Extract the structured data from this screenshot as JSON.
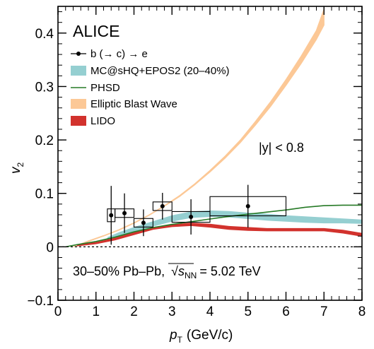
{
  "chart_data": {
    "type": "scatter",
    "experiment": "ALICE",
    "selection_text": "|y| < 0.8",
    "collision_text": "30–50% Pb–Pb, √sNN = 5.02 TeV",
    "collision_parts": {
      "main": "30–50% Pb–Pb,",
      "sqrt_label": "s",
      "sub": "NN",
      "value": "= 5.02 TeV"
    },
    "xlabel": {
      "main": "p",
      "sub": "T",
      "unit": "(GeV/c)"
    },
    "ylabel": {
      "main": "v",
      "sub": "2"
    },
    "xlim": [
      0,
      8
    ],
    "ylim": [
      -0.1,
      0.45
    ],
    "xticks": [
      0,
      1,
      2,
      3,
      4,
      5,
      6,
      7,
      8
    ],
    "xtick_labels": [
      "0",
      "1",
      "2",
      "3",
      "4",
      "5",
      "6",
      "7",
      "8"
    ],
    "yticks": [
      -0.1,
      0,
      0.1,
      0.2,
      0.3,
      0.4
    ],
    "ytick_labels": [
      "−0.1",
      "0",
      "0.1",
      "0.2",
      "0.3",
      "0.4"
    ],
    "legend_position": "top-left",
    "legend": [
      {
        "label": "b (→ c) → e",
        "style": "marker"
      },
      {
        "label": "MC@sHQ+EPOS2 (20–40%)",
        "style": "band",
        "color": "#95cfd1"
      },
      {
        "label": "PHSD",
        "style": "line",
        "color": "#267a26"
      },
      {
        "label": "Elliptic Blast Wave",
        "style": "band",
        "color": "#fcc896"
      },
      {
        "label": "LIDO",
        "style": "band",
        "color": "#d2322d"
      }
    ],
    "data": {
      "name": "b (→ c) → e",
      "points": [
        {
          "x": 1.4,
          "y": 0.059,
          "stat_err": 0.055,
          "sys_err": 0.012,
          "x_half": 0.1
        },
        {
          "x": 1.75,
          "y": 0.063,
          "stat_err": 0.037,
          "sys_err": 0.008,
          "x_half": 0.25
        },
        {
          "x": 2.25,
          "y": 0.045,
          "stat_err": 0.025,
          "sys_err": 0.008,
          "x_half": 0.25
        },
        {
          "x": 2.75,
          "y": 0.076,
          "stat_err": 0.025,
          "sys_err": 0.008,
          "x_half": 0.25
        },
        {
          "x": 3.5,
          "y": 0.056,
          "stat_err": 0.033,
          "sys_err": 0.01,
          "x_half": 0.5
        },
        {
          "x": 5.0,
          "y": 0.076,
          "stat_err": 0.04,
          "sys_err": 0.018,
          "x_half": 1.0
        }
      ]
    },
    "models": {
      "mcshq": {
        "color": "#95cfd1",
        "x": [
          1.3,
          1.6,
          2.0,
          2.5,
          3.0,
          3.5,
          4.0,
          4.5,
          5.0,
          5.5,
          6.0,
          6.5,
          7.0,
          7.5,
          8.0
        ],
        "low": [
          0.01,
          0.017,
          0.027,
          0.038,
          0.047,
          0.054,
          0.056,
          0.055,
          0.052,
          0.049,
          0.047,
          0.045,
          0.044,
          0.044,
          0.043
        ],
        "high": [
          0.018,
          0.027,
          0.037,
          0.048,
          0.059,
          0.066,
          0.068,
          0.067,
          0.064,
          0.062,
          0.059,
          0.057,
          0.055,
          0.053,
          0.051
        ]
      },
      "phsd": {
        "color": "#267a26",
        "x": [
          0.2,
          0.5,
          1.0,
          1.5,
          2.0,
          2.5,
          3.0,
          3.5,
          4.0,
          4.5,
          5.0,
          5.5,
          6.0,
          6.5,
          7.0,
          7.5,
          8.0
        ],
        "y": [
          0.0,
          0.004,
          0.01,
          0.018,
          0.028,
          0.036,
          0.042,
          0.047,
          0.052,
          0.057,
          0.061,
          0.065,
          0.069,
          0.074,
          0.077,
          0.078,
          0.078
        ]
      },
      "blastwave": {
        "color": "#fcc896",
        "x": [
          0.4,
          0.8,
          1.2,
          1.6,
          2.0,
          2.4,
          2.8,
          3.2,
          3.6,
          4.0,
          4.4,
          4.8,
          5.2,
          5.6,
          6.0,
          6.4,
          6.8,
          7.0
        ],
        "low": [
          0.0,
          0.01,
          0.02,
          0.031,
          0.044,
          0.059,
          0.076,
          0.094,
          0.116,
          0.14,
          0.166,
          0.195,
          0.228,
          0.263,
          0.302,
          0.343,
          0.388,
          0.415
        ],
        "high": [
          0.0,
          0.011,
          0.021,
          0.032,
          0.045,
          0.06,
          0.077,
          0.096,
          0.118,
          0.143,
          0.17,
          0.2,
          0.235,
          0.272,
          0.313,
          0.357,
          0.405,
          0.445
        ]
      },
      "lido": {
        "color": "#d2322d",
        "x": [
          0.5,
          1.0,
          1.5,
          2.0,
          2.5,
          3.0,
          3.5,
          4.0,
          4.5,
          5.0,
          5.5,
          6.0,
          6.5,
          7.0,
          7.5,
          8.0
        ],
        "low": [
          0.001,
          0.005,
          0.012,
          0.022,
          0.032,
          0.037,
          0.039,
          0.036,
          0.032,
          0.03,
          0.029,
          0.029,
          0.029,
          0.029,
          0.025,
          0.019
        ],
        "high": [
          0.004,
          0.009,
          0.017,
          0.027,
          0.037,
          0.042,
          0.045,
          0.043,
          0.039,
          0.037,
          0.035,
          0.035,
          0.035,
          0.035,
          0.032,
          0.026
        ]
      }
    }
  }
}
